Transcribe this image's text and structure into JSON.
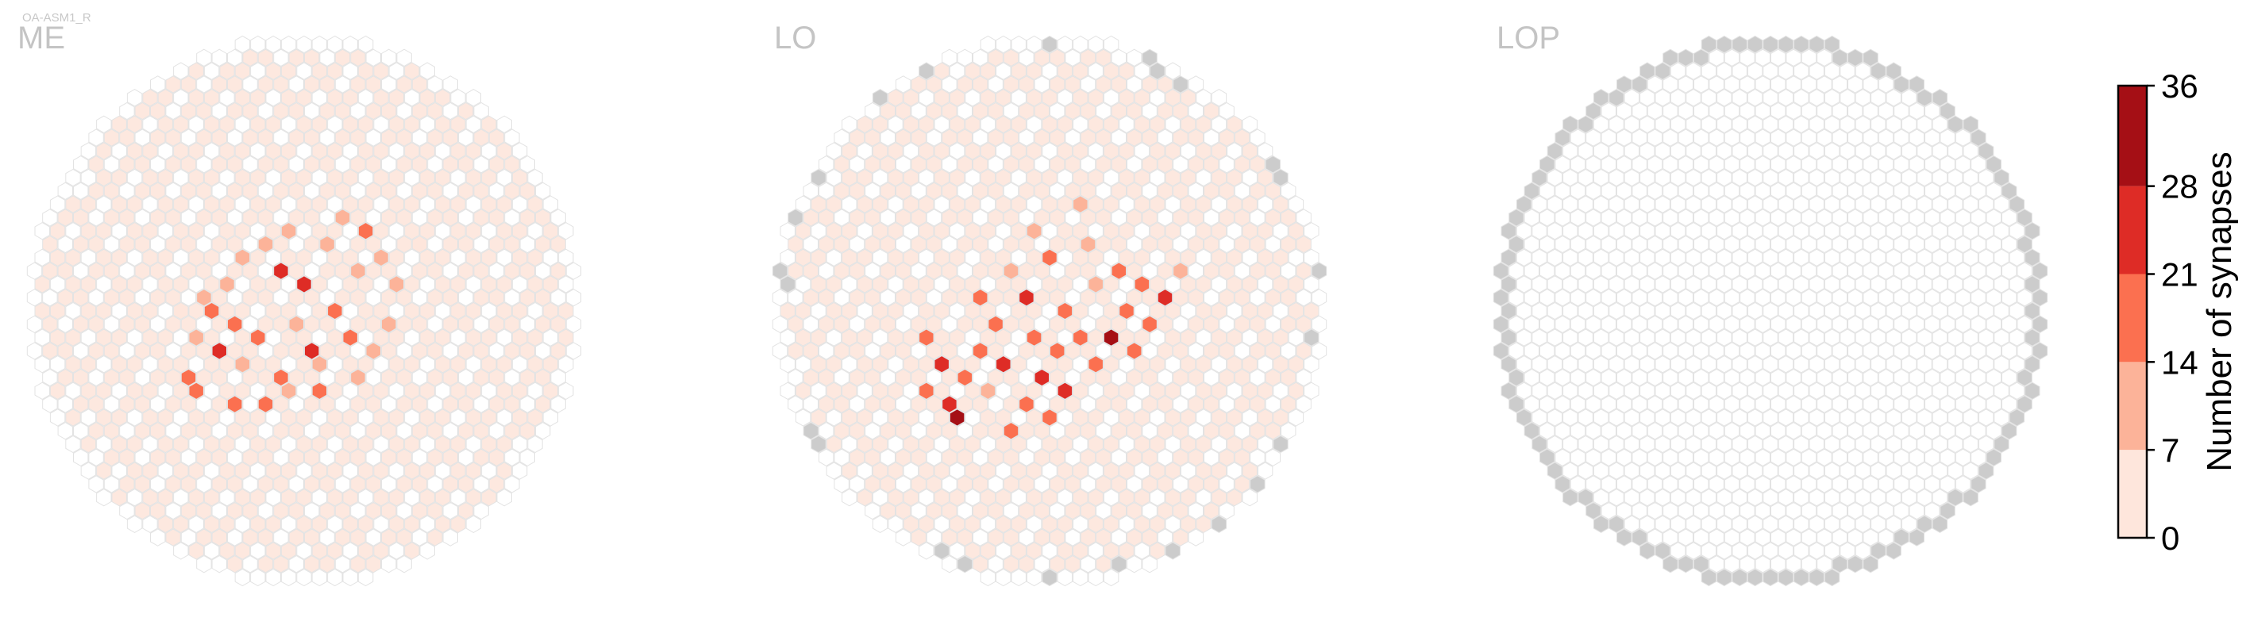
{
  "cell_id": "OA-ASM1_R",
  "chart_data": {
    "type": "heatmap",
    "panels": [
      {
        "title": "ME",
        "cells": [
          {
            "q": -8,
            "r": 0,
            "v": 3
          },
          {
            "q": -7,
            "r": -1,
            "v": 8
          },
          {
            "q": -7,
            "r": 2,
            "v": 12
          },
          {
            "q": -6,
            "r": 0,
            "v": 14
          },
          {
            "q": -6,
            "r": 3,
            "v": 24
          },
          {
            "q": -5,
            "r": 1,
            "v": 18
          },
          {
            "q": -5,
            "r": -2,
            "v": 10
          },
          {
            "q": -4,
            "r": 4,
            "v": 13
          },
          {
            "q": -4,
            "r": -4,
            "v": 9
          },
          {
            "q": -3,
            "r": 2,
            "v": 19
          },
          {
            "q": -3,
            "r": -5,
            "v": 11
          },
          {
            "q": -2,
            "r": 5,
            "v": 15
          },
          {
            "q": -2,
            "r": -3,
            "v": 21
          },
          {
            "q": -1,
            "r": 1,
            "v": 12
          },
          {
            "q": -1,
            "r": -6,
            "v": 9
          },
          {
            "q": 0,
            "r": 3,
            "v": 26
          },
          {
            "q": 0,
            "r": -2,
            "v": 22
          },
          {
            "q": 1,
            "r": 4,
            "v": 11
          },
          {
            "q": 1,
            "r": -5,
            "v": 13
          },
          {
            "q": 2,
            "r": 0,
            "v": 16
          },
          {
            "q": 2,
            "r": -7,
            "v": 10
          },
          {
            "q": 3,
            "r": 2,
            "v": 14
          },
          {
            "q": 3,
            "r": -3,
            "v": 12
          },
          {
            "q": 4,
            "r": -6,
            "v": 17
          },
          {
            "q": 5,
            "r": 1,
            "v": 9
          },
          {
            "q": 5,
            "r": -4,
            "v": 8
          },
          {
            "q": 6,
            "r": -2,
            "v": 11
          },
          {
            "q": 7,
            "r": -5,
            "v": 6
          },
          {
            "q": -8,
            "r": 5,
            "v": 18
          },
          {
            "q": -7,
            "r": 6,
            "v": 20
          },
          {
            "q": -5,
            "r": 7,
            "v": 16
          },
          {
            "q": -3,
            "r": 7,
            "v": 17
          },
          {
            "q": -1,
            "r": 6,
            "v": 12
          },
          {
            "q": 1,
            "r": 6,
            "v": 14
          },
          {
            "q": 3,
            "r": 5,
            "v": 10
          },
          {
            "q": 4,
            "r": 3,
            "v": 9
          }
        ]
      },
      {
        "title": "LO",
        "cells": [
          {
            "q": -8,
            "r": 2,
            "v": 16
          },
          {
            "q": -7,
            "r": 4,
            "v": 22
          },
          {
            "q": -7,
            "r": 7,
            "v": 24
          },
          {
            "q": -6,
            "r": 5,
            "v": 19
          },
          {
            "q": -6,
            "r": 8,
            "v": 32
          },
          {
            "q": -5,
            "r": 3,
            "v": 20
          },
          {
            "q": -5,
            "r": -1,
            "v": 15
          },
          {
            "q": -4,
            "r": 6,
            "v": 13
          },
          {
            "q": -4,
            "r": 1,
            "v": 18
          },
          {
            "q": -3,
            "r": -3,
            "v": 12
          },
          {
            "q": -3,
            "r": 4,
            "v": 23
          },
          {
            "q": -2,
            "r": 7,
            "v": 17
          },
          {
            "q": -2,
            "r": -1,
            "v": 21
          },
          {
            "q": -1,
            "r": 2,
            "v": 18
          },
          {
            "q": -1,
            "r": 5,
            "v": 25
          },
          {
            "q": 0,
            "r": -4,
            "v": 14
          },
          {
            "q": 0,
            "r": 3,
            "v": 20
          },
          {
            "q": 1,
            "r": 6,
            "v": 24
          },
          {
            "q": 1,
            "r": 0,
            "v": 16
          },
          {
            "q": 2,
            "r": 2,
            "v": 19
          },
          {
            "q": 2,
            "r": -5,
            "v": 12
          },
          {
            "q": 3,
            "r": 4,
            "v": 17
          },
          {
            "q": 3,
            "r": -2,
            "v": 13
          },
          {
            "q": 4,
            "r": 2,
            "v": 34
          },
          {
            "q": 4,
            "r": -3,
            "v": 18
          },
          {
            "q": 5,
            "r": 0,
            "v": 15
          },
          {
            "q": 5,
            "r": 3,
            "v": 20
          },
          {
            "q": 6,
            "r": -2,
            "v": 14
          },
          {
            "q": 7,
            "r": -1,
            "v": 21
          },
          {
            "q": 8,
            "r": -3,
            "v": 11
          },
          {
            "q": -8,
            "r": 6,
            "v": 19
          },
          {
            "q": -3,
            "r": 9,
            "v": 18
          },
          {
            "q": 0,
            "r": 8,
            "v": 16
          },
          {
            "q": -1,
            "r": -6,
            "v": 12
          },
          {
            "q": 2,
            "r": -8,
            "v": 11
          },
          {
            "q": 6,
            "r": 1,
            "v": 17
          }
        ]
      },
      {
        "title": "LOP",
        "cells": []
      }
    ],
    "colorbar": {
      "label": "Number of synapses",
      "ticks": [
        0,
        7,
        14,
        21,
        28,
        36
      ],
      "colors": [
        "#fee6dc",
        "#fcb399",
        "#fb7050",
        "#de2c26",
        "#a50f15"
      ]
    },
    "empty_color": "#ffffff",
    "missing_color": "#cccccc"
  }
}
